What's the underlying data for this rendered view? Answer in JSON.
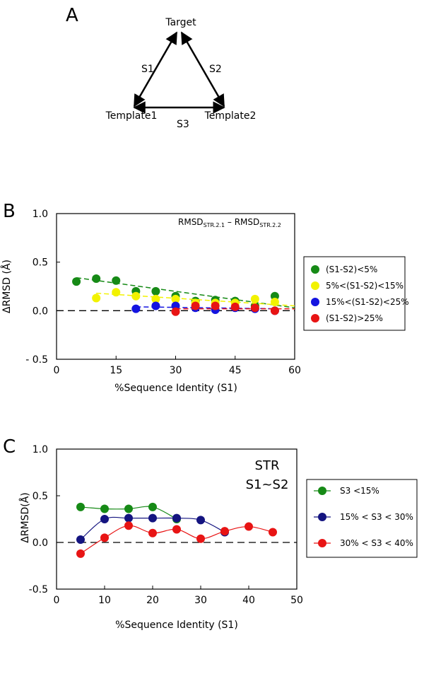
{
  "panel_a": {
    "letter": "A",
    "nodes": {
      "target": "Target",
      "template1": "Template1",
      "template2": "Template2"
    },
    "edges": {
      "s1": "S1",
      "s2": "S2",
      "s3": "S3"
    }
  },
  "chart_data": [
    {
      "panel": "B",
      "type": "scatter",
      "title": "",
      "annotation": {
        "main": "RMSD",
        "sub1": "STR.2.1",
        "dash": " – ",
        "sub2": "STR.2.2"
      },
      "xlabel": "%Sequence Identity (S1)",
      "ylabel": "ΔRMSD (Å)",
      "xlim": [
        0,
        60
      ],
      "ylim": [
        -0.5,
        1.0
      ],
      "xticks": [
        0,
        15,
        30,
        45,
        60
      ],
      "yticks": [
        -0.5,
        0.0,
        0.5,
        1.0
      ],
      "ytick_labels": [
        "- 0.5",
        "0.0",
        "0.5",
        "1.0"
      ],
      "zero_line": "dashed",
      "legend": "right",
      "series": [
        {
          "name": "(S1-S2)<5%",
          "color": "#168a16",
          "x": [
            5,
            10,
            15,
            20,
            25,
            30,
            35,
            40,
            45,
            50,
            55
          ],
          "y": [
            0.3,
            0.33,
            0.31,
            0.2,
            0.2,
            0.15,
            0.1,
            0.11,
            0.1,
            0.05,
            0.15
          ],
          "trend": [
            [
              5,
              0.34
            ],
            [
              60,
              0.03
            ]
          ]
        },
        {
          "name": "5%<(S1-S2)<15%",
          "color": "#f2f200",
          "x": [
            10,
            15,
            20,
            25,
            30,
            35,
            40,
            45,
            50,
            55
          ],
          "y": [
            0.13,
            0.19,
            0.15,
            0.12,
            0.12,
            0.08,
            0.08,
            0.08,
            0.12,
            0.09
          ],
          "trend": [
            [
              10,
              0.18
            ],
            [
              60,
              0.05
            ]
          ]
        },
        {
          "name": "15%<(S1-S2)<25%",
          "color": "#1414e0",
          "x": [
            20,
            25,
            30,
            35,
            40,
            45,
            50,
            55
          ],
          "y": [
            0.02,
            0.05,
            0.05,
            0.03,
            0.01,
            0.03,
            0.02,
            0.0
          ],
          "trend": [
            [
              20,
              0.04
            ],
            [
              55,
              0.02
            ]
          ]
        },
        {
          "name": "(S1-S2)>25%",
          "color": "#e81414",
          "x": [
            30,
            35,
            40,
            45,
            50,
            55
          ],
          "y": [
            -0.01,
            0.05,
            0.05,
            0.04,
            0.03,
            0.0
          ],
          "trend": [
            [
              30,
              0.02
            ],
            [
              60,
              0.02
            ]
          ]
        }
      ]
    },
    {
      "panel": "C",
      "type": "line",
      "title": "",
      "annotation": {
        "line1": "STR",
        "line2": "S1~S2"
      },
      "xlabel": "%Sequence Identity (S1)",
      "ylabel": "ΔRMSD(Å)",
      "xlim": [
        0,
        50
      ],
      "ylim": [
        -0.5,
        1.0
      ],
      "xticks": [
        0,
        10,
        20,
        30,
        40,
        50
      ],
      "yticks": [
        -0.5,
        0.0,
        0.5,
        1.0
      ],
      "ytick_labels": [
        "-0.5",
        "0.0",
        "0.5",
        "1.0"
      ],
      "zero_line": "dashed",
      "legend": "right",
      "series": [
        {
          "name": "S3 <15%",
          "color": "#168a16",
          "x": [
            5,
            10,
            15,
            20,
            25
          ],
          "y": [
            0.38,
            0.36,
            0.36,
            0.38,
            0.25
          ]
        },
        {
          "name": "15% < S3 < 30%",
          "color": "#141480",
          "x": [
            5,
            10,
            15,
            20,
            25,
            30,
            35
          ],
          "y": [
            0.03,
            0.25,
            0.26,
            0.26,
            0.26,
            0.24,
            0.11
          ]
        },
        {
          "name": "30% < S3 < 40%",
          "color": "#e81414",
          "x": [
            5,
            10,
            15,
            20,
            25,
            30,
            35,
            40,
            45
          ],
          "y": [
            -0.12,
            0.05,
            0.18,
            0.1,
            0.14,
            0.04,
            0.12,
            0.17,
            0.11
          ]
        }
      ]
    }
  ]
}
